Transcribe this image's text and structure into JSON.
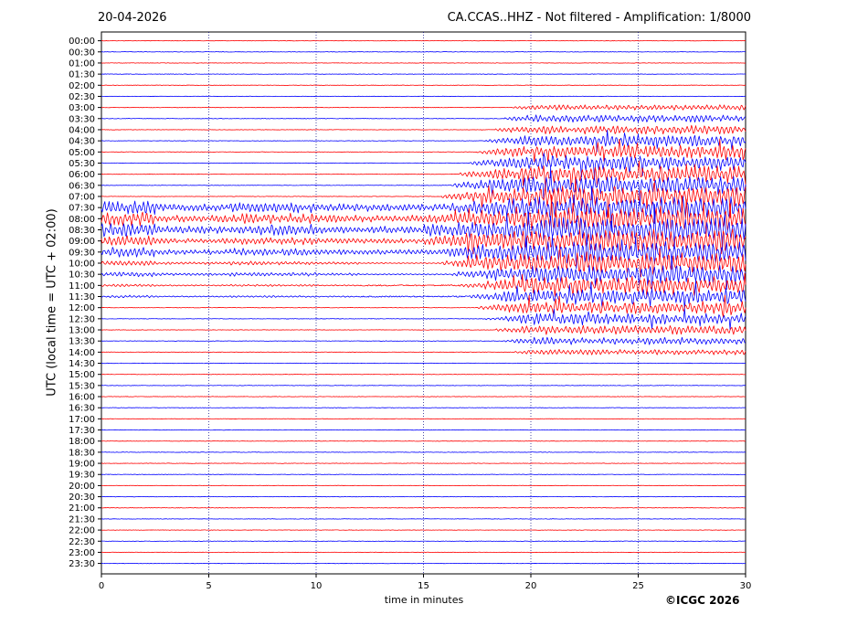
{
  "header": {
    "date": "20-04-2026",
    "station_info": "CA.CCAS..HHZ - Not filtered - Amplification: 1/8000"
  },
  "credit": "©ICGC 2026",
  "colors": {
    "trace_red": "#ff0000",
    "trace_blue": "#0000ff",
    "grid": "#000080",
    "axis": "#000000"
  },
  "chart_data": {
    "type": "line",
    "title": "CA.CCAS..HHZ - Not filtered - Amplification: 1/8000",
    "xlabel": "time in minutes",
    "ylabel": "UTC (local time = UTC + 02:00)",
    "xlim": [
      0,
      30
    ],
    "x_ticks": [
      "0",
      "5",
      "10",
      "15",
      "20",
      "25",
      "30"
    ],
    "x_grid": true,
    "row_labels": [
      "00:00",
      "00:30",
      "01:00",
      "01:30",
      "02:00",
      "02:30",
      "03:00",
      "03:30",
      "04:00",
      "04:30",
      "05:00",
      "05:30",
      "06:00",
      "06:30",
      "07:00",
      "07:30",
      "08:00",
      "08:30",
      "09:00",
      "09:30",
      "10:00",
      "10:30",
      "11:00",
      "11:30",
      "12:00",
      "12:30",
      "13:00",
      "13:30",
      "14:00",
      "14:30",
      "15:00",
      "15:30",
      "16:00",
      "16:30",
      "17:00",
      "17:30",
      "18:00",
      "18:30",
      "19:00",
      "19:30",
      "20:00",
      "20:30",
      "21:00",
      "21:30",
      "22:00",
      "22:30",
      "23:00",
      "23:30"
    ],
    "row_colors": [
      "red",
      "blue"
    ],
    "events": [
      {
        "description": "small local activity",
        "start_row": 15,
        "end_row": 23,
        "x_range": [
          0,
          30
        ]
      },
      {
        "description": "large earthquake signal",
        "start_row": 6,
        "end_row": 28,
        "x_range": [
          15,
          30
        ],
        "peak_minute": 20.2
      }
    ]
  }
}
